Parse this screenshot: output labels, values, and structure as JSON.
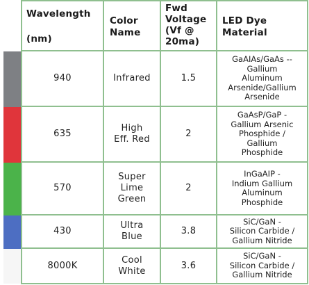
{
  "colors": {
    "border": "#8fbf8f",
    "infrared": "#7e8084",
    "red": "#e0353b",
    "green": "#4bb34a",
    "blue": "#4d6ec2",
    "white": "#f6f6f6"
  },
  "headers": {
    "wavelength_line1": "Wavelength",
    "wavelength_line2": "(nm)",
    "color_line1": "Color",
    "color_line2": "Name",
    "voltage_line1": "Fwd",
    "voltage_line2": "Voltage",
    "voltage_line3": "(Vf @",
    "voltage_line4": "20ma)",
    "dye_line1": "LED Dye",
    "dye_line2": "Material"
  },
  "rows": [
    {
      "wavelength": "940",
      "color": "Infrared",
      "voltage": "1.5",
      "material_lines": [
        "GaAIAs/GaAs --",
        "Gallium",
        "Aluminum",
        "Arsenide/Gallium",
        "Arsenide"
      ]
    },
    {
      "wavelength": "635",
      "color_lines": [
        "High",
        "Eff. Red"
      ],
      "voltage": "2",
      "material_lines": [
        "GaAsP/GaP -",
        "Gallium Arsenic",
        "Phosphide /",
        "Gallium",
        "Phosphide"
      ]
    },
    {
      "wavelength": "570",
      "color_lines": [
        "Super",
        "Lime",
        "Green"
      ],
      "voltage": "2",
      "material_lines": [
        "InGaAIP -",
        "Indium Gallium",
        "Aluminum",
        "Phosphide"
      ]
    },
    {
      "wavelength": "430",
      "color_lines": [
        "Ultra",
        "Blue"
      ],
      "voltage": "3.8",
      "material_lines": [
        "SiC/GaN -",
        "Silicon Carbide /",
        "Gallium Nitride"
      ]
    },
    {
      "wavelength": "8000K",
      "color_lines": [
        "Cool",
        "White"
      ],
      "voltage": "3.6",
      "material_lines": [
        "SiC/GaN -",
        "Silicon Carbide /",
        "Gallium Nitride"
      ]
    }
  ]
}
